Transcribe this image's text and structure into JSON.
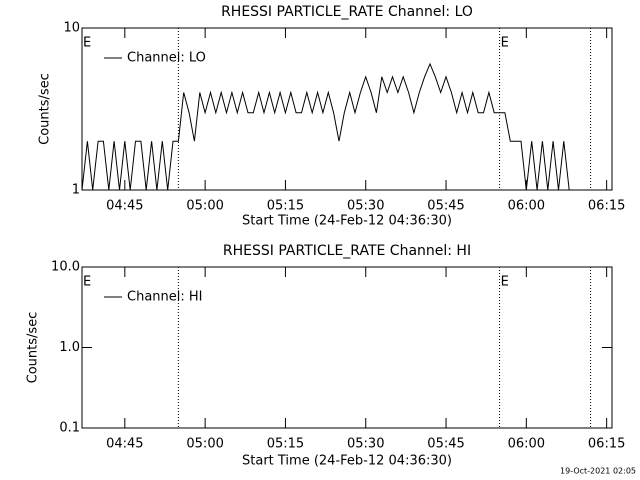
{
  "chart_data": [
    {
      "type": "line",
      "title": "RHESSI PARTICLE_RATE Channel: LO",
      "ylabel": "Counts/sec",
      "xlabel": "Start Time (24-Feb-12 04:36:30)",
      "log_y": true,
      "ylim": [
        1,
        10
      ],
      "yticks": [
        1,
        10
      ],
      "xlim": [
        "04:37",
        "06:16"
      ],
      "xticks": [
        "04:45",
        "05:00",
        "05:15",
        "05:30",
        "05:45",
        "06:00",
        "06:15"
      ],
      "vlines": [
        "04:55",
        "05:55",
        "06:12"
      ],
      "annotations": [
        {
          "x": "04:37",
          "text": "E"
        },
        {
          "x": "05:55",
          "text": "E"
        }
      ],
      "legend": "upper left",
      "x": [
        "04:37",
        "04:38",
        "04:39",
        "04:40",
        "04:41",
        "04:42",
        "04:43",
        "04:44",
        "04:45",
        "04:46",
        "04:47",
        "04:48",
        "04:49",
        "04:50",
        "04:51",
        "04:52",
        "04:53",
        "04:54",
        "04:55",
        "04:56",
        "04:57",
        "04:58",
        "04:59",
        "05:00",
        "05:01",
        "05:02",
        "05:03",
        "05:04",
        "05:05",
        "05:06",
        "05:07",
        "05:08",
        "05:09",
        "05:10",
        "05:11",
        "05:12",
        "05:13",
        "05:14",
        "05:15",
        "05:16",
        "05:17",
        "05:18",
        "05:19",
        "05:20",
        "05:21",
        "05:22",
        "05:23",
        "05:24",
        "05:25",
        "05:26",
        "05:27",
        "05:28",
        "05:29",
        "05:30",
        "05:31",
        "05:32",
        "05:33",
        "05:34",
        "05:35",
        "05:36",
        "05:37",
        "05:38",
        "05:39",
        "05:40",
        "05:41",
        "05:42",
        "05:43",
        "05:44",
        "05:45",
        "05:46",
        "05:47",
        "05:48",
        "05:49",
        "05:50",
        "05:51",
        "05:52",
        "05:53",
        "05:54",
        "05:55",
        "05:56",
        "05:57",
        "05:58",
        "05:59",
        "06:00",
        "06:01",
        "06:02",
        "06:03",
        "06:04",
        "06:05",
        "06:06",
        "06:07",
        "06:08",
        "06:09",
        "06:10"
      ],
      "series": [
        {
          "name": "Channel: LO",
          "color": "#000000",
          "values": [
            1,
            2,
            1,
            2,
            2,
            1,
            2,
            1,
            2,
            1,
            2,
            2,
            1,
            2,
            1,
            2,
            1,
            2,
            2,
            4,
            3,
            2,
            4,
            3,
            4,
            3,
            4,
            3,
            4,
            3,
            4,
            3,
            3,
            4,
            3,
            4,
            3,
            4,
            3,
            4,
            3,
            3,
            4,
            3,
            4,
            3,
            4,
            3,
            2,
            3,
            4,
            3,
            4,
            5,
            4,
            3,
            5,
            4,
            5,
            4,
            5,
            4,
            3,
            4,
            5,
            6,
            5,
            4,
            5,
            4,
            3,
            4,
            3,
            4,
            3,
            3,
            4,
            3,
            3,
            3,
            2,
            2,
            2,
            1,
            2,
            1,
            2,
            1,
            2,
            1,
            2,
            1,
            1,
            1
          ]
        }
      ]
    },
    {
      "type": "line",
      "title": "RHESSI PARTICLE_RATE Channel: HI",
      "ylabel": "Counts/sec",
      "xlabel": "Start Time (24-Feb-12 04:36:30)",
      "log_y": true,
      "ylim": [
        0.1,
        10
      ],
      "yticks": [
        0.1,
        {
          "value": 1,
          "label": "1.0"
        },
        {
          "value": 10,
          "label": "10.0"
        }
      ],
      "xlim": [
        "04:37",
        "06:16"
      ],
      "xticks": [
        "04:45",
        "05:00",
        "05:15",
        "05:30",
        "05:45",
        "06:00",
        "06:15"
      ],
      "vlines": [
        "04:55",
        "05:55",
        "06:12"
      ],
      "annotations": [
        {
          "x": "04:37",
          "text": "E"
        },
        {
          "x": "05:55",
          "text": "E"
        }
      ],
      "legend": "upper left",
      "x": [],
      "series": [
        {
          "name": "Channel: HI",
          "color": "#000000",
          "values": []
        }
      ]
    }
  ],
  "footer": "19-Oct-2021 02:05"
}
